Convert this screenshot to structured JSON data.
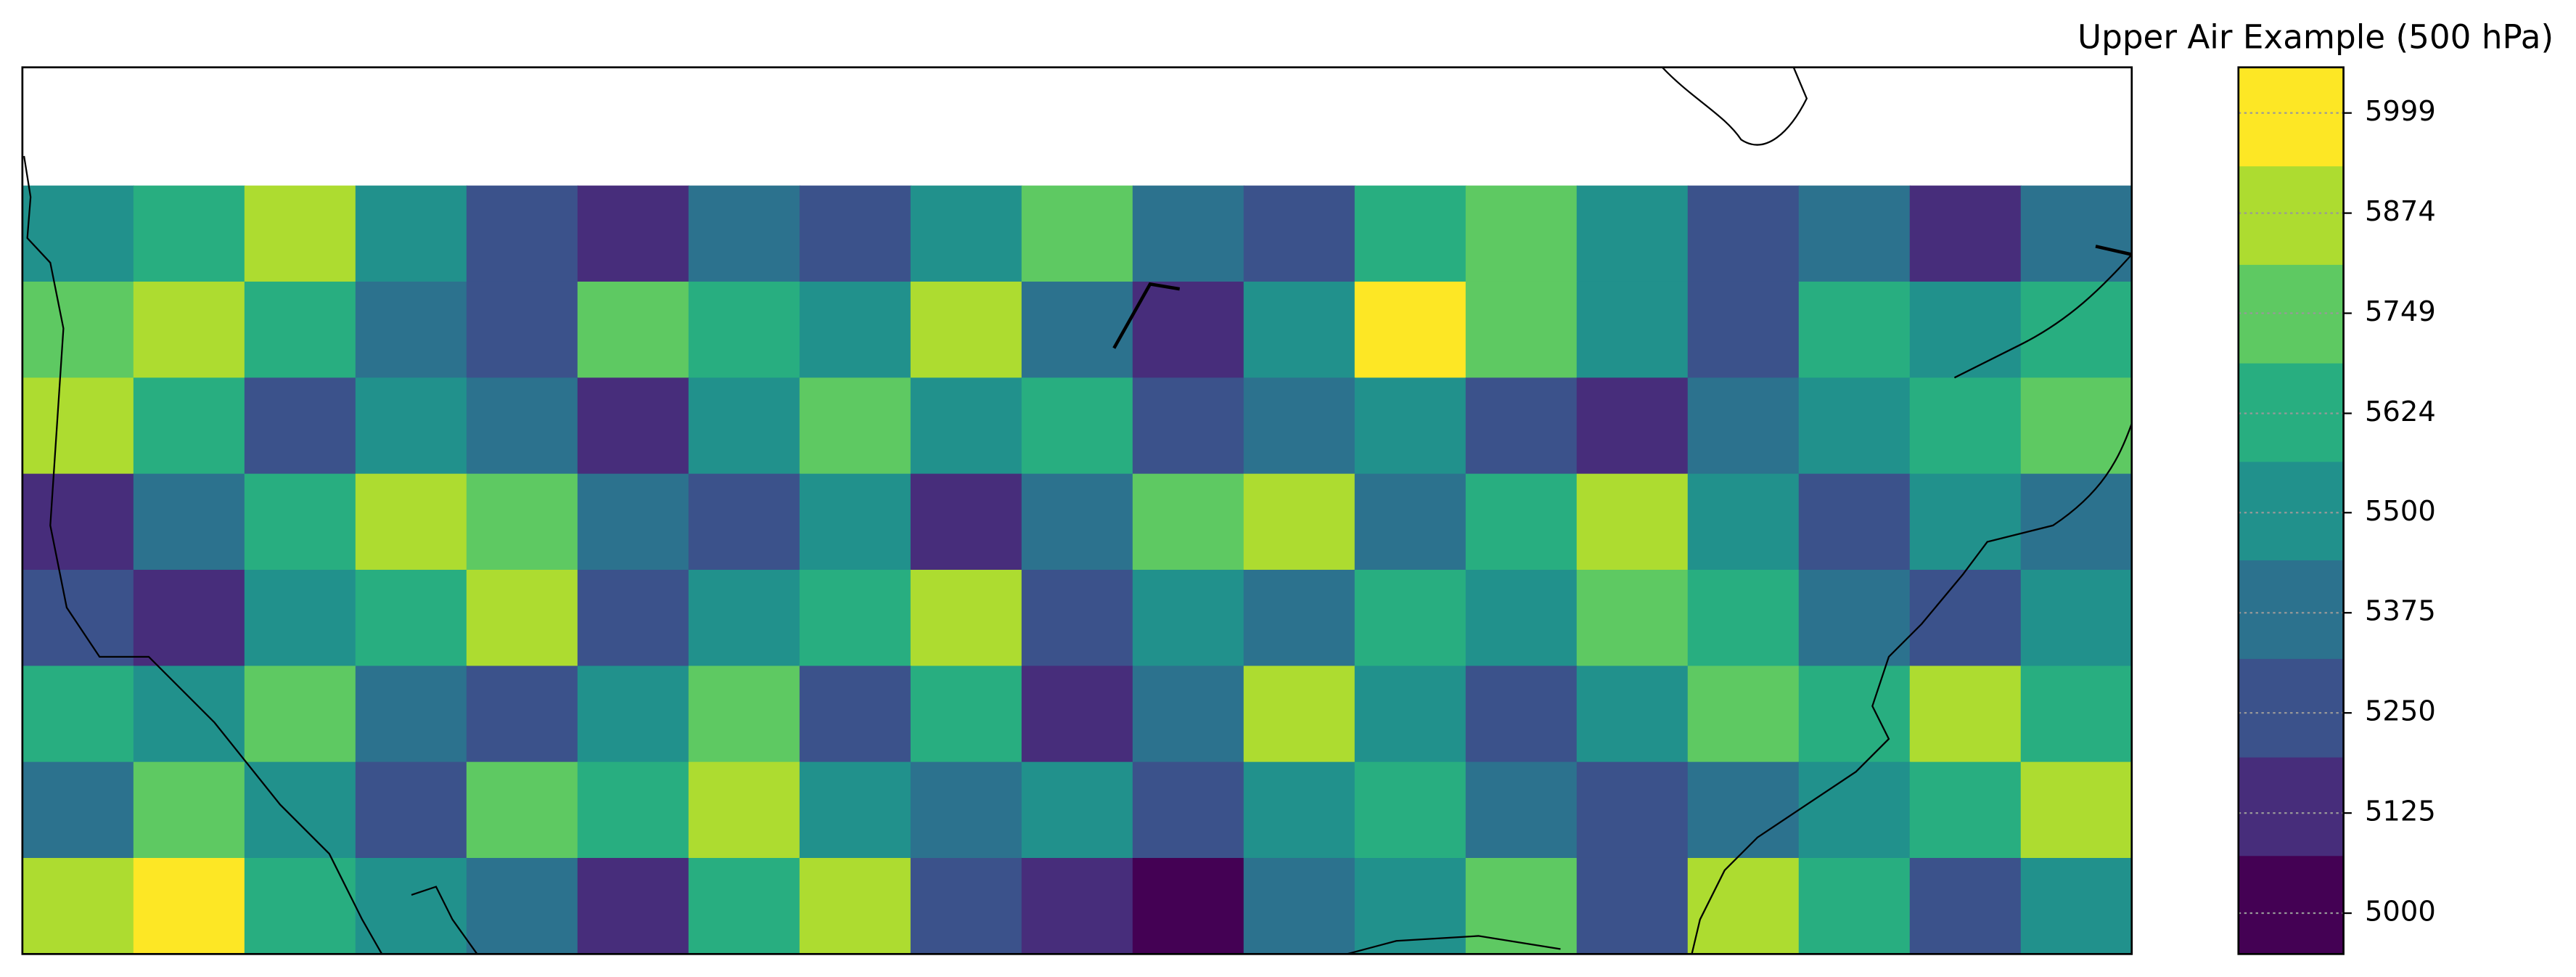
{
  "chart_data": {
    "type": "contour",
    "title": "Upper Air Example (500 hPa)",
    "colors": [
      "#440154",
      "#472d7b",
      "#3b528b",
      "#2c728e",
      "#21918c",
      "#28ae80",
      "#5ec962",
      "#addc30",
      "#fde725"
    ],
    "levels": [
      4949,
      5072,
      5195,
      5318,
      5441,
      5564,
      5687,
      5810,
      5933,
      6056
    ],
    "ylim": [
      4949,
      6056
    ],
    "yticks": [
      5000,
      5125,
      5250,
      5375,
      5500,
      5624,
      5749,
      5874,
      5999
    ],
    "z": [
      [
        5500,
        5624,
        5874,
        5500,
        5250,
        5125,
        5375,
        5250,
        5500,
        5749,
        5375,
        5250,
        5624,
        5749,
        5500,
        5250,
        5375,
        5125,
        5375
      ],
      [
        5749,
        5874,
        5624,
        5375,
        5250,
        5749,
        5624,
        5500,
        5874,
        5375,
        5125,
        5500,
        5999,
        5749,
        5500,
        5250,
        5624,
        5500,
        5624
      ],
      [
        5874,
        5624,
        5250,
        5500,
        5375,
        5125,
        5500,
        5749,
        5500,
        5624,
        5250,
        5375,
        5500,
        5250,
        5125,
        5375,
        5500,
        5624,
        5749
      ],
      [
        5125,
        5375,
        5624,
        5874,
        5749,
        5375,
        5250,
        5500,
        5125,
        5375,
        5749,
        5874,
        5375,
        5624,
        5874,
        5500,
        5250,
        5500,
        5375
      ],
      [
        5250,
        5125,
        5500,
        5624,
        5874,
        5250,
        5500,
        5624,
        5874,
        5250,
        5500,
        5375,
        5624,
        5500,
        5749,
        5624,
        5375,
        5249,
        5500
      ],
      [
        5624,
        5500,
        5749,
        5375,
        5250,
        5500,
        5749,
        5250,
        5624,
        5125,
        5374,
        5874,
        5500,
        5250,
        5500,
        5749,
        5624,
        5874,
        5624
      ],
      [
        5375,
        5749,
        5500,
        5250,
        5749,
        5624,
        5874,
        5500,
        5375,
        5500,
        5250,
        5500,
        5624,
        5375,
        5250,
        5375,
        5500,
        5624,
        5874
      ],
      [
        5874,
        5999,
        5624,
        5500,
        5375,
        5125,
        5624,
        5874,
        5250,
        5125,
        5000,
        5375,
        5500,
        5749,
        5250,
        5874,
        5624,
        5250,
        5500
      ]
    ]
  }
}
